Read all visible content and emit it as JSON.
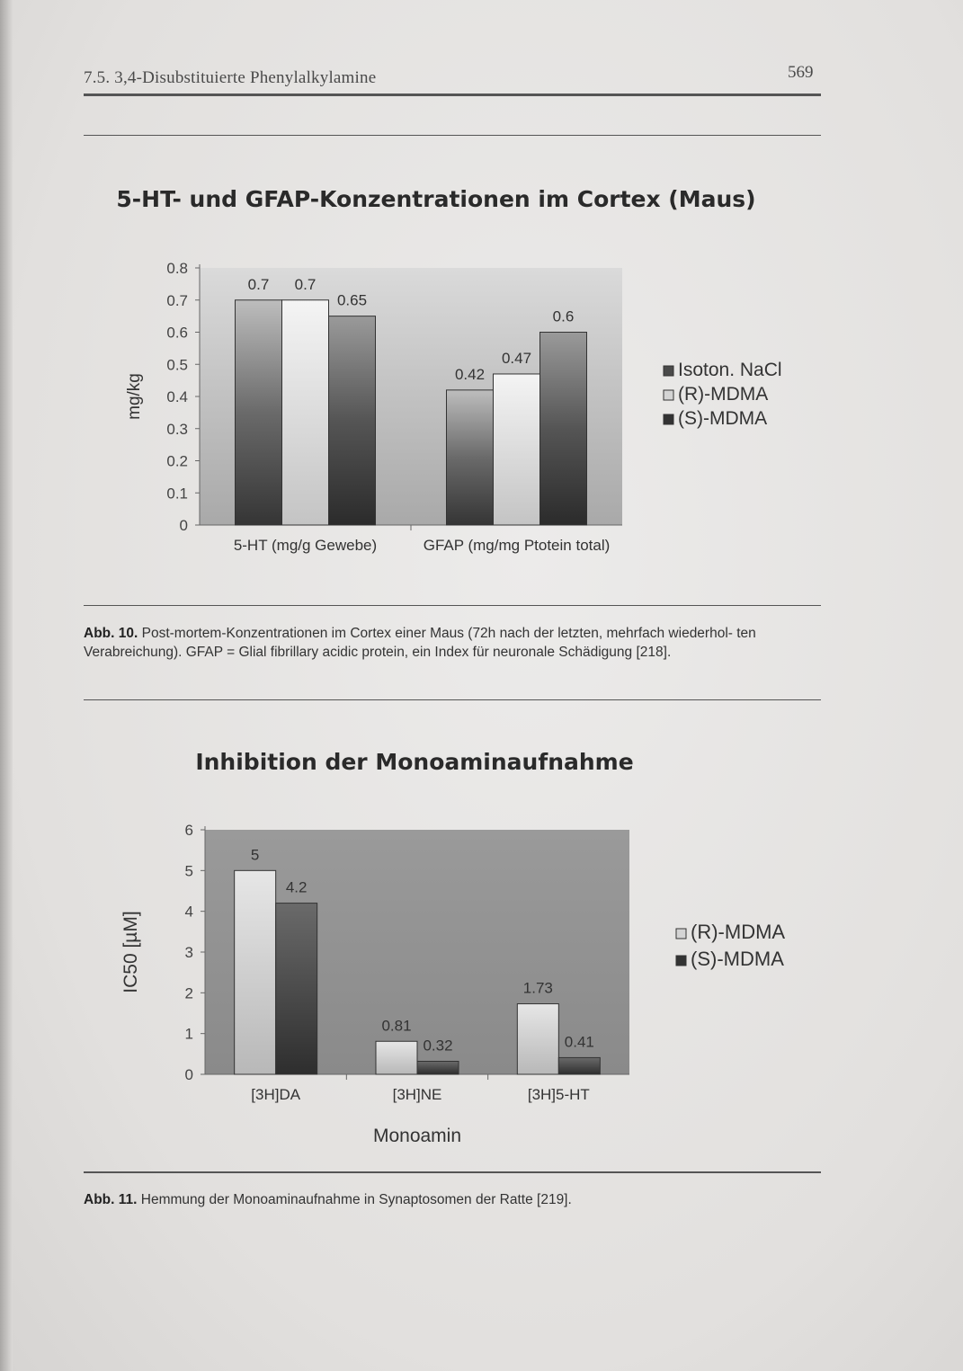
{
  "header": {
    "running_title": "7.5. 3,4-Disubstituierte Phenylalkylamine",
    "page_number": "569"
  },
  "figures": [
    {
      "caption_label": "Abb. 10.",
      "caption_text": "Post-mortem-Konzentrationen im Cortex einer Maus (72h nach der letzten, mehrfach wiederhol- ten Verabreichung). GFAP = Glial fibrillary acidic protein, ein Index für neuronale Schädigung [218]."
    },
    {
      "caption_label": "Abb. 11.",
      "caption_text": "Hemmung der Monoaminaufnahme in Synaptosomen der Ratte [219]."
    }
  ],
  "colors": {
    "isoton_nacl": "#4a4a4a",
    "r_mdma": "#d2d2d2",
    "s_mdma": "#3a3a3a"
  },
  "chart_data": [
    {
      "type": "bar",
      "title": "5-HT- und GFAP-Konzentrationen im Cortex (Maus)",
      "xlabel": "",
      "ylabel": "mg/kg",
      "categories": [
        "5-HT (mg/g Gewebe)",
        "GFAP (mg/mg Ptotein total)"
      ],
      "series": [
        {
          "name": "Isoton. NaCl",
          "values": [
            0.7,
            0.42
          ],
          "labels": [
            "0.7",
            "0.42"
          ],
          "color_key": "isoton_nacl"
        },
        {
          "name": "(R)-MDMA",
          "values": [
            0.7,
            0.47
          ],
          "labels": [
            "0.7",
            "0.47"
          ],
          "color_key": "r_mdma"
        },
        {
          "name": "(S)-MDMA",
          "values": [
            0.65,
            0.6
          ],
          "labels": [
            "0.65",
            "0.6"
          ],
          "color_key": "s_mdma"
        }
      ],
      "ylim": [
        0,
        0.8
      ],
      "yticks": [
        0,
        0.1,
        0.2,
        0.3,
        0.4,
        0.5,
        0.6,
        0.7,
        0.8
      ],
      "ytick_labels": [
        "0",
        "0.1",
        "0.2",
        "0.3",
        "0.4",
        "0.5",
        "0.6",
        "0.7",
        "0.8"
      ],
      "grid": false,
      "legend_position": "right"
    },
    {
      "type": "bar",
      "title": "Inhibition der Monoaminaufnahme",
      "xlabel": "Monoamin",
      "ylabel": "IC50 [µM]",
      "categories": [
        "[3H]DA",
        "[3H]NE",
        "[3H]5-HT"
      ],
      "series": [
        {
          "name": "(R)-MDMA",
          "values": [
            5,
            0.81,
            1.73
          ],
          "labels": [
            "5",
            "0.81",
            "1.73"
          ],
          "color_key": "r_mdma"
        },
        {
          "name": "(S)-MDMA",
          "values": [
            4.2,
            0.32,
            0.41
          ],
          "labels": [
            "4.2",
            "0.32",
            "0.41"
          ],
          "color_key": "s_mdma"
        }
      ],
      "ylim": [
        0,
        6
      ],
      "yticks": [
        0,
        1,
        2,
        3,
        4,
        5,
        6
      ],
      "ytick_labels": [
        "0",
        "1",
        "2",
        "3",
        "4",
        "5",
        "6"
      ],
      "grid": false,
      "legend_position": "right"
    }
  ]
}
